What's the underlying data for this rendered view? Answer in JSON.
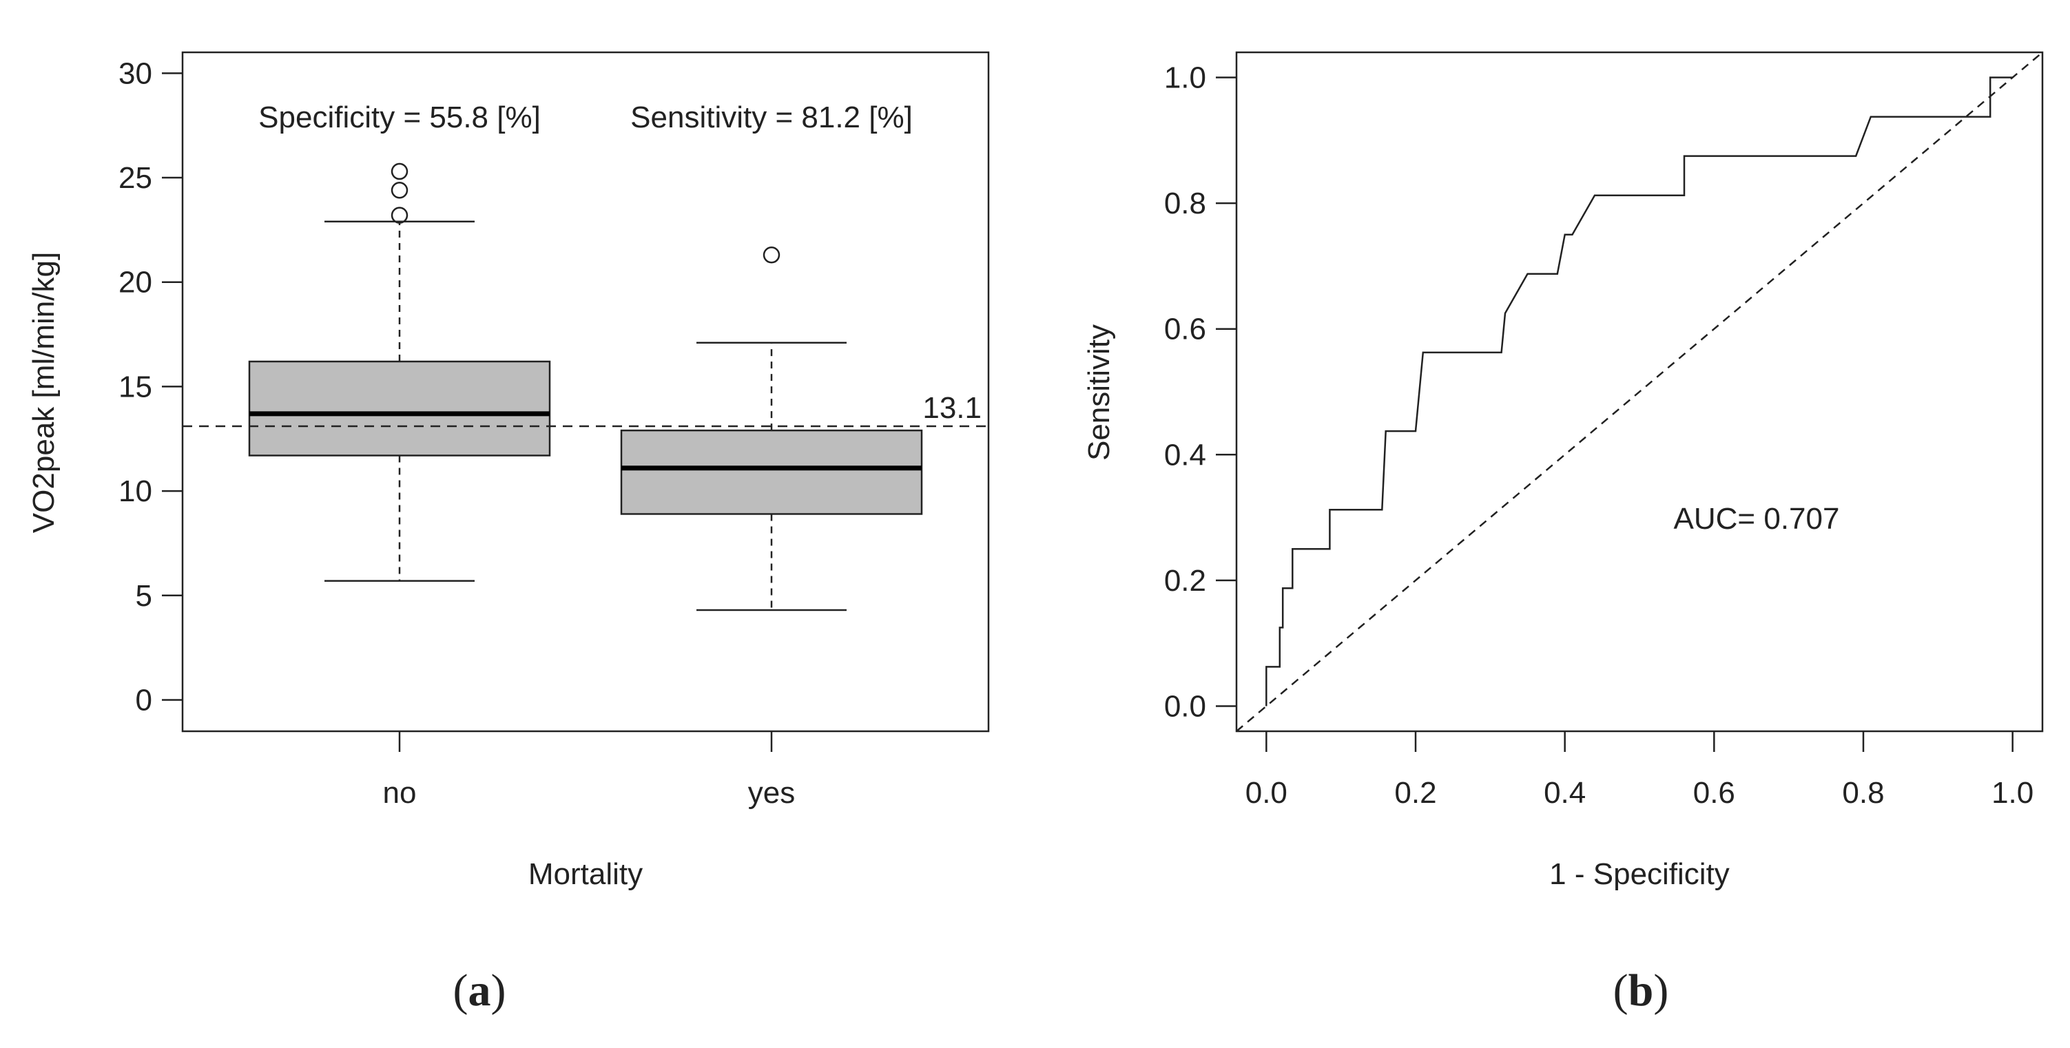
{
  "chart_data": [
    {
      "type": "boxplot",
      "panel_label": "(a)",
      "panel_letter": "a",
      "xlabel": "Mortality",
      "ylabel": "VO2peak [ml/min/kg]",
      "ylim": [
        -1.5,
        31
      ],
      "yticks": [
        0,
        5,
        10,
        15,
        20,
        25,
        30
      ],
      "grid": false,
      "categories": [
        "no",
        "yes"
      ],
      "boxes": [
        {
          "category": "no",
          "whisker_low": 5.7,
          "q1": 11.7,
          "median": 13.7,
          "q3": 16.2,
          "whisker_high": 22.9,
          "outliers": [
            23.2,
            24.4,
            25.3
          ]
        },
        {
          "category": "yes",
          "whisker_low": 4.3,
          "q1": 8.9,
          "median": 11.1,
          "q3": 12.9,
          "whisker_high": 17.1,
          "outliers": [
            21.3
          ]
        }
      ],
      "cutoff": {
        "value": 13.1,
        "label": "13.1"
      },
      "annotations": {
        "specificity": "Specificity = 55.8 [%]",
        "sensitivity": "Sensitivity = 81.2 [%]"
      },
      "box_fill": "#bdbdbd"
    },
    {
      "type": "line",
      "panel_label": "(b)",
      "panel_letter": "b",
      "xlabel": "1 - Specificity",
      "ylabel": "Sensitivity",
      "xlim": [
        -0.04,
        1.04
      ],
      "ylim": [
        -0.04,
        1.04
      ],
      "xticks": [
        0.0,
        0.2,
        0.4,
        0.6,
        0.8,
        1.0
      ],
      "yticks": [
        0.0,
        0.2,
        0.4,
        0.6,
        0.8,
        1.0
      ],
      "grid": false,
      "annotation": "AUC= 0.707",
      "series": [
        {
          "style": "solid",
          "x": [
            0,
            0,
            0.018,
            0.018,
            0.022,
            0.022,
            0.035,
            0.035,
            0.085,
            0.085,
            0.155,
            0.16,
            0.2,
            0.21,
            0.315,
            0.32,
            0.35,
            0.39,
            0.4,
            0.41,
            0.44,
            0.56,
            0.56,
            0.79,
            0.81,
            0.97,
            0.97,
            1.0
          ],
          "y": [
            0,
            0.0625,
            0.0625,
            0.125,
            0.125,
            0.1875,
            0.1875,
            0.25,
            0.25,
            0.3125,
            0.3125,
            0.4375,
            0.4375,
            0.5625,
            0.5625,
            0.625,
            0.6875,
            0.6875,
            0.75,
            0.75,
            0.8125,
            0.8125,
            0.875,
            0.875,
            0.9375,
            0.9375,
            1.0,
            1.0
          ]
        },
        {
          "style": "dashed",
          "x": [
            -0.04,
            1.04
          ],
          "y": [
            -0.04,
            1.04
          ]
        }
      ]
    }
  ]
}
